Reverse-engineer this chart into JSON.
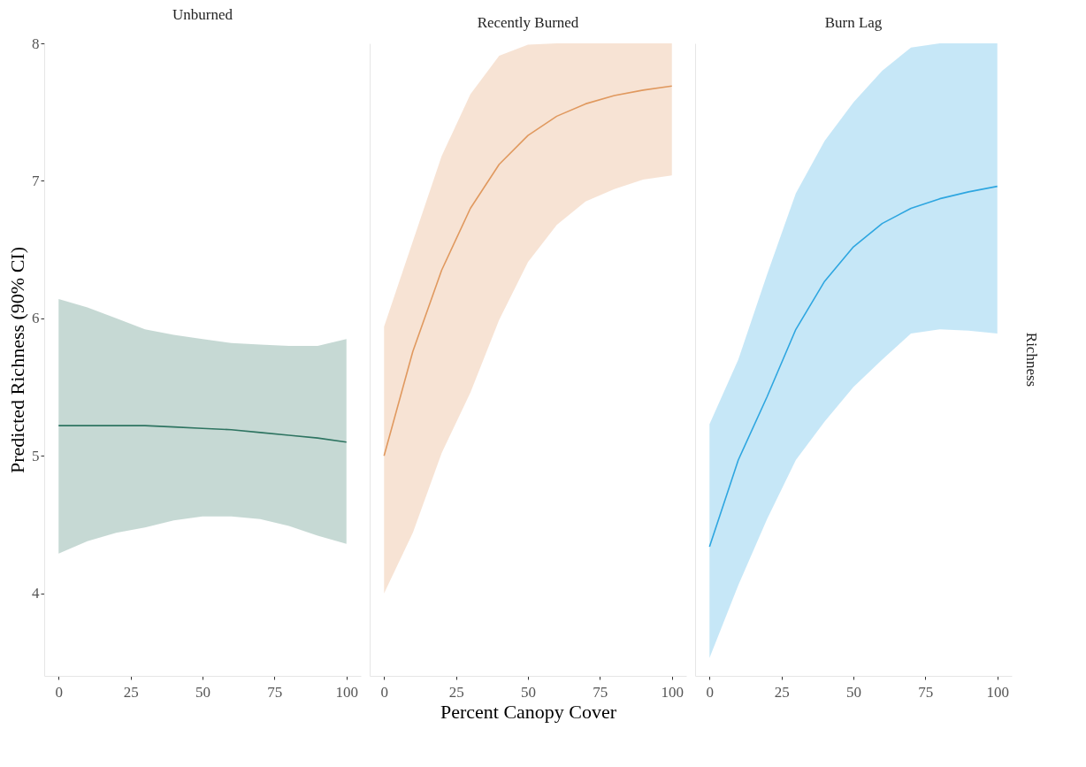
{
  "chart_data": [
    {
      "type": "line",
      "title": "Unburned",
      "ylabel": "Predicted Richness (90% CI)",
      "x": [
        0,
        10,
        20,
        30,
        40,
        50,
        60,
        70,
        80,
        90,
        100
      ],
      "xlim": [
        -5,
        105
      ],
      "xticks": [
        0,
        25,
        50,
        75,
        100
      ],
      "ylim": [
        3.4,
        8.0
      ],
      "yticks": [
        4,
        5,
        6,
        7,
        8
      ],
      "grid": false,
      "series": [
        {
          "color": "#2e7461",
          "values": [
            5.22,
            5.22,
            5.22,
            5.22,
            5.21,
            5.2,
            5.19,
            5.17,
            5.15,
            5.13,
            5.1
          ],
          "lower": [
            4.29,
            4.38,
            4.44,
            4.48,
            4.53,
            4.56,
            4.56,
            4.54,
            4.49,
            4.42,
            4.36
          ],
          "upper": [
            6.14,
            6.08,
            6.0,
            5.92,
            5.88,
            5.85,
            5.82,
            5.81,
            5.8,
            5.8,
            5.85
          ]
        }
      ]
    },
    {
      "type": "line",
      "title": "Recently Burned",
      "xlabel": "Percent Canopy Cover",
      "x": [
        0,
        10,
        20,
        30,
        40,
        50,
        60,
        70,
        80,
        90,
        100
      ],
      "xlim": [
        -5,
        105
      ],
      "xticks": [
        0,
        25,
        50,
        75,
        100
      ],
      "ylim": [
        3.4,
        8.0
      ],
      "yticks": [
        4,
        5,
        6,
        7,
        8
      ],
      "tick_labels": "x",
      "grid": false,
      "series": [
        {
          "color": "#e0995f",
          "values": [
            5.0,
            5.76,
            6.35,
            6.8,
            7.12,
            7.33,
            7.47,
            7.56,
            7.62,
            7.66,
            7.69
          ],
          "lower": [
            4.0,
            4.44,
            5.02,
            5.46,
            5.99,
            6.41,
            6.68,
            6.85,
            6.94,
            7.01,
            7.04
          ],
          "upper": [
            5.94,
            6.56,
            7.18,
            7.63,
            7.91,
            7.99,
            8.0,
            8.0,
            8.0,
            8.0,
            8.0
          ]
        }
      ]
    },
    {
      "type": "line",
      "title": "Burn Lag",
      "annotations": [
        "Richness"
      ],
      "x": [
        0,
        10,
        20,
        30,
        40,
        50,
        60,
        70,
        80,
        90,
        100
      ],
      "xlim": [
        -5,
        105
      ],
      "xticks": [
        0,
        25,
        50,
        75,
        100
      ],
      "ylim": [
        3.4,
        8.0
      ],
      "yticks": [
        4,
        5,
        6,
        7,
        8
      ],
      "tick_labels": "x",
      "grid": false,
      "series": [
        {
          "color": "#2ea6e0",
          "values": [
            4.34,
            4.97,
            5.43,
            5.92,
            6.27,
            6.52,
            6.69,
            6.8,
            6.87,
            6.92,
            6.96
          ],
          "lower": [
            3.53,
            4.06,
            4.54,
            4.97,
            5.25,
            5.5,
            5.7,
            5.89,
            5.92,
            5.91,
            5.89
          ],
          "upper": [
            5.23,
            5.7,
            6.32,
            6.91,
            7.29,
            7.57,
            7.8,
            7.97,
            8.0,
            8.0,
            8.0
          ]
        }
      ]
    }
  ]
}
